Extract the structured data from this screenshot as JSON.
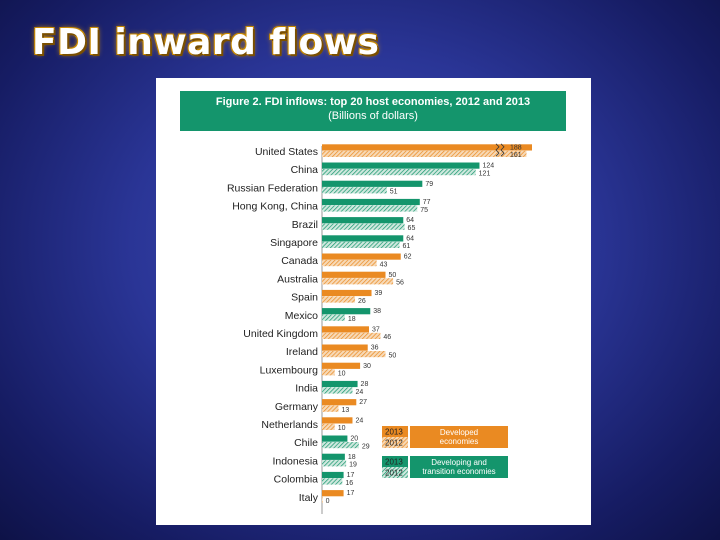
{
  "slide": {
    "title": "FDI inward flows"
  },
  "figure": {
    "title": "Figure 2. FDI inflows: top 20 host economies, 2012 and 2013",
    "subtitle": "(Billions of dollars)"
  },
  "colors": {
    "developed": "#ea8a22",
    "developing": "#14956c",
    "header_bg": "#14956c"
  },
  "chart_data": {
    "type": "bar",
    "orientation": "horizontal",
    "title": "Figure 2. FDI inflows: top 20 host economies, 2012 and 2013",
    "subtitle": "(Billions of dollars)",
    "categories": [
      "United States",
      "China",
      "Russian Federation",
      "Hong Kong, China",
      "Brazil",
      "Singapore",
      "Canada",
      "Australia",
      "Spain",
      "Mexico",
      "United Kingdom",
      "Ireland",
      "Luxembourg",
      "India",
      "Germany",
      "Netherlands",
      "Chile",
      "Indonesia",
      "Colombia",
      "Italy"
    ],
    "group": [
      "developed",
      "developing",
      "developing",
      "developing",
      "developing",
      "developing",
      "developed",
      "developed",
      "developed",
      "developing",
      "developed",
      "developed",
      "developed",
      "developing",
      "developed",
      "developed",
      "developing",
      "developing",
      "developing",
      "developed"
    ],
    "series": [
      {
        "name": "2013",
        "values": [
          188,
          124,
          79,
          77,
          64,
          64,
          62,
          50,
          39,
          38,
          37,
          36,
          30,
          28,
          27,
          24,
          20,
          18,
          17,
          17
        ],
        "pattern": "solid"
      },
      {
        "name": "2012",
        "values": [
          161,
          121,
          51,
          75,
          65,
          61,
          43,
          56,
          26,
          18,
          46,
          50,
          10,
          24,
          13,
          10,
          29,
          19,
          16,
          0
        ],
        "pattern": "hatched"
      }
    ],
    "value_labels_2013": [
      "188",
      "124",
      "79",
      "77",
      "64",
      "64",
      "62",
      "50",
      "39",
      "38",
      "37",
      "36",
      "30",
      "28",
      "27",
      "24",
      "20",
      "18",
      "17",
      "17"
    ],
    "value_labels_2012": [
      "161",
      "121",
      "51",
      "75",
      "65",
      "61",
      "43",
      "56",
      "26",
      "18",
      "46",
      "50",
      "10",
      "24",
      "13",
      "10",
      "29",
      "19",
      "16",
      "0"
    ],
    "axis_break": "United States",
    "legend": [
      {
        "year_solid": "2013",
        "year_hatched": "2012",
        "label": "Developed economies",
        "color": "#ea8a22"
      },
      {
        "year_solid": "2013",
        "year_hatched": "2012",
        "label": "Developing and transition economies",
        "color": "#14956c"
      }
    ],
    "legend_position": "bottom-right",
    "grid": false
  }
}
